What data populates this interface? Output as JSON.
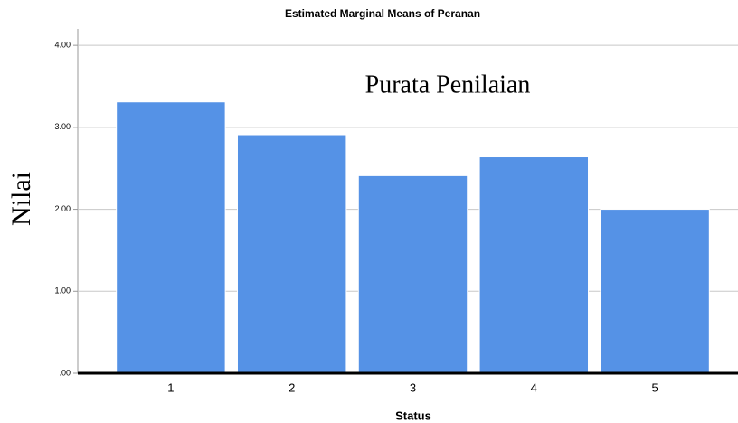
{
  "chart_data": {
    "type": "bar",
    "title": "Estimated Marginal Means of Peranan",
    "annotation": "Purata Penilaian",
    "x_label": "Status",
    "y_label": "Nilai",
    "categories": [
      "1",
      "2",
      "3",
      "4",
      "5"
    ],
    "values": [
      3.31,
      2.91,
      2.41,
      2.64,
      2.0
    ],
    "color": "#5592e6",
    "ylim": [
      0,
      4.2
    ],
    "yticks": [
      {
        "value": 0,
        "label": ".00"
      },
      {
        "value": 1,
        "label": "1.00"
      },
      {
        "value": 2,
        "label": "2.00"
      },
      {
        "value": 3,
        "label": "3.00"
      },
      {
        "value": 4,
        "label": "4.00"
      }
    ],
    "grid": true
  }
}
